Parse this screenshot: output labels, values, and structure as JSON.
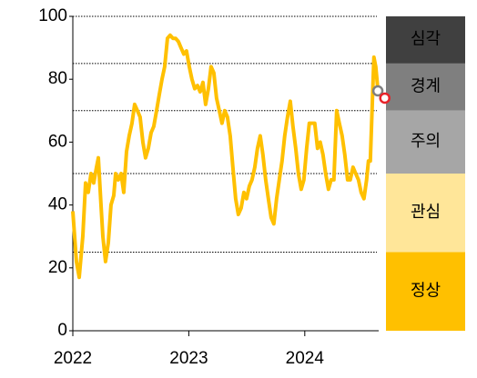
{
  "chart_data": {
    "type": "line",
    "xlim": [
      2022,
      2024.7
    ],
    "xticks": [
      2022,
      2023,
      2024
    ],
    "ylim": [
      0,
      100
    ],
    "yticks": [
      0,
      20,
      40,
      60,
      80,
      100
    ],
    "series": [
      {
        "color": "#ffc000",
        "x": [
          2022.0,
          2022.031,
          2022.055,
          2022.086,
          2022.11,
          2022.133,
          2022.157,
          2022.18,
          2022.204,
          2022.22,
          2022.243,
          2022.259,
          2022.282,
          2022.306,
          2022.329,
          2022.353,
          2022.369,
          2022.392,
          2022.416,
          2022.439,
          2022.463,
          2022.486,
          2022.51,
          2022.533,
          2022.557,
          2022.58,
          2022.604,
          2022.627,
          2022.651,
          2022.675,
          2022.698,
          2022.722,
          2022.745,
          2022.769,
          2022.792,
          2022.816,
          2022.839,
          2022.863,
          2022.886,
          2022.91,
          2022.933,
          2022.957,
          2022.98,
          2023.004,
          2023.027,
          2023.051,
          2023.075,
          2023.098,
          2023.122,
          2023.145,
          2023.169,
          2023.192,
          2023.216,
          2023.239,
          2023.263,
          2023.286,
          2023.31,
          2023.333,
          2023.357,
          2023.38,
          2023.404,
          2023.427,
          2023.451,
          2023.475,
          2023.498,
          2023.522,
          2023.545,
          2023.569,
          2023.592,
          2023.616,
          2023.639,
          2023.663,
          2023.686,
          2023.71,
          2023.733,
          2023.757,
          2023.78,
          2023.804,
          2023.827,
          2023.851,
          2023.875,
          2023.898,
          2023.922,
          2023.945,
          2023.969,
          2023.992,
          2024.016,
          2024.039,
          2024.063,
          2024.086,
          2024.11,
          2024.133,
          2024.157,
          2024.18,
          2024.204,
          2024.227,
          2024.251,
          2024.275,
          2024.298,
          2024.322,
          2024.345,
          2024.369,
          2024.392,
          2024.416,
          2024.439,
          2024.463,
          2024.486,
          2024.51,
          2024.533,
          2024.549,
          2024.565,
          2024.58,
          2024.596,
          2024.612,
          2024.627
        ],
        "values": [
          38,
          22,
          17,
          30,
          47,
          44,
          50,
          47,
          52,
          55,
          40,
          30,
          22,
          28,
          40,
          43,
          50,
          48,
          50,
          44,
          57,
          62,
          66,
          72,
          70,
          68,
          60,
          55,
          58,
          63,
          65,
          70,
          75,
          80,
          84,
          93,
          94,
          93,
          93,
          92,
          90,
          88,
          89,
          84,
          80,
          77,
          78,
          76,
          79,
          72,
          77,
          84,
          82,
          74,
          70,
          66,
          70,
          68,
          62,
          52,
          42,
          37,
          39,
          44,
          42,
          46,
          48,
          52,
          58,
          62,
          56,
          48,
          42,
          36,
          34,
          42,
          48,
          54,
          62,
          68,
          73,
          65,
          58,
          50,
          45,
          48,
          58,
          66,
          66,
          66,
          58,
          60,
          56,
          50,
          45,
          48,
          48,
          70,
          66,
          62,
          56,
          48,
          48,
          52,
          50,
          48,
          44,
          42,
          48,
          54,
          54,
          70,
          87,
          84,
          78
        ]
      }
    ],
    "points": [
      {
        "x": 2024.63,
        "value": 76.3,
        "color": "#808080"
      },
      {
        "x": 2024.69,
        "value": 74,
        "color": "#e8232a"
      }
    ],
    "bands": [
      {
        "label": "심각",
        "from": 85,
        "to": 100,
        "color": "#404040",
        "text_color": "#ffffff"
      },
      {
        "label": "경계",
        "from": 70,
        "to": 85,
        "color": "#7f7f7f",
        "text_color": "#ffffff"
      },
      {
        "label": "주의",
        "from": 50,
        "to": 70,
        "color": "#a6a6a6",
        "text_color": "#000000"
      },
      {
        "label": "관심",
        "from": 25,
        "to": 50,
        "color": "#ffe699",
        "text_color": "#000000"
      },
      {
        "label": "정상",
        "from": 0,
        "to": 25,
        "color": "#ffc000",
        "text_color": "#000000"
      }
    ]
  }
}
